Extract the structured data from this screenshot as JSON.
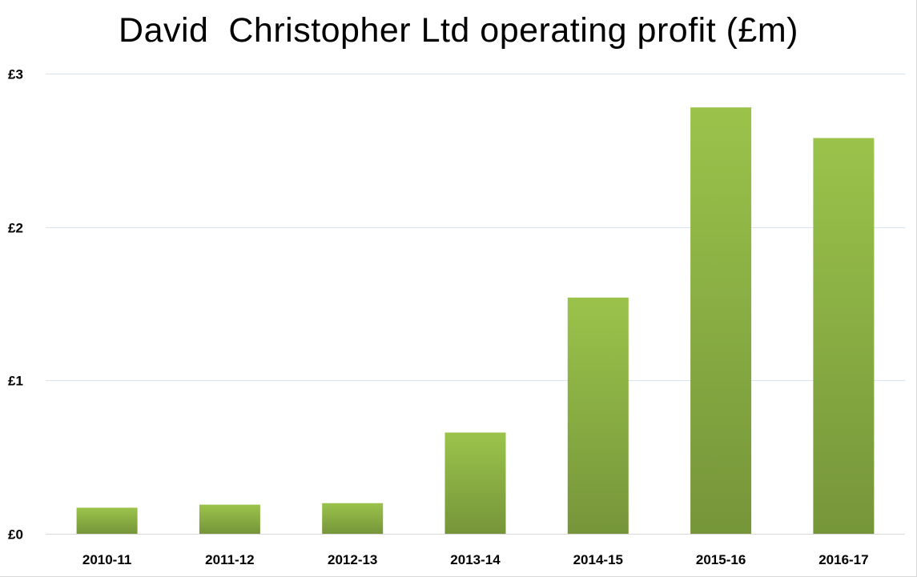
{
  "chart_data": {
    "type": "bar",
    "title": "David  Christopher Ltd operating profit (£m)",
    "xlabel": "",
    "ylabel": "",
    "categories": [
      "2010-11",
      "2011-12",
      "2012-13",
      "2013-14",
      "2014-15",
      "2015-16",
      "2016-17"
    ],
    "values": [
      0.17,
      0.19,
      0.2,
      0.66,
      1.54,
      2.78,
      2.58
    ],
    "ylim": [
      0,
      3
    ],
    "yticks": [
      0,
      1,
      2,
      3
    ],
    "ytick_labels": [
      "£0",
      "£1",
      "£2",
      "£3"
    ],
    "grid": true,
    "legend": "none",
    "colors": {
      "bar_top": "#9bc34b",
      "bar_bottom": "#76953a",
      "grid": "#d7e3ee",
      "axis": "#d9d9d9"
    }
  }
}
